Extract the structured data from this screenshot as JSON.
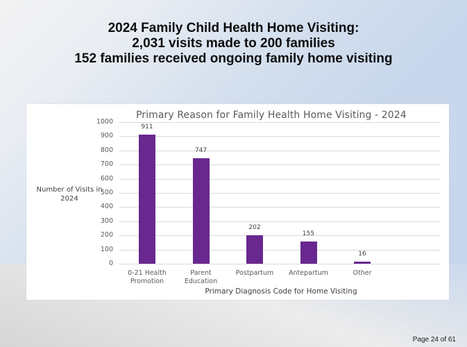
{
  "slide": {
    "title_lines": [
      "2024 Family Child Health Home Visiting:",
      "2,031 visits made to 200 families",
      "152 families received ongoing family home visiting"
    ],
    "page_label": "Page 24 of 61"
  },
  "chart_data": {
    "type": "bar",
    "title": "Primary Reason for Family Health Home Visiting - 2024",
    "xlabel": "Primary Diagnosis Code for Home Visiting",
    "ylabel_lines": [
      "Number of Visits in",
      "2024"
    ],
    "categories": [
      "0-21 Health Promotion",
      "Parent Education",
      "Postpartum",
      "Antepartum",
      "Other"
    ],
    "category_lines": [
      [
        "0-21 Health",
        "Promotion"
      ],
      [
        "Parent",
        "Education"
      ],
      [
        "Postpartum"
      ],
      [
        "Antepartum"
      ],
      [
        "Other"
      ]
    ],
    "values": [
      911,
      747,
      202,
      155,
      16
    ],
    "data_labels": [
      "911",
      "747",
      "202",
      "155",
      "16"
    ],
    "ylim": [
      0,
      1000
    ],
    "yticks": [
      "0",
      "100",
      "200",
      "300",
      "400",
      "500",
      "600",
      "700",
      "800",
      "900",
      "1000"
    ],
    "grid": true,
    "legend": "none",
    "bar_color": "#68288f"
  }
}
